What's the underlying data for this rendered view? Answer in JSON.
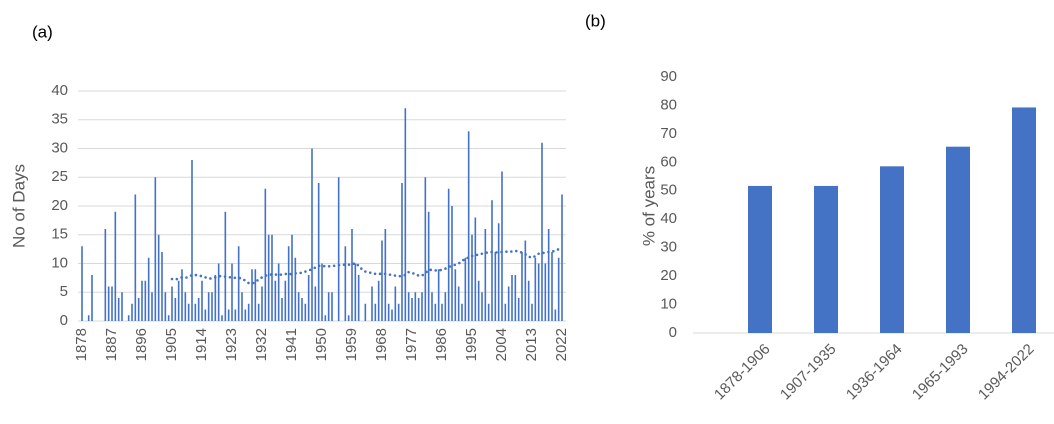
{
  "chart_data": [
    {
      "type": "bar",
      "panel_label": "(a)",
      "ylabel": "No of Days",
      "x": [
        1878,
        1879,
        1880,
        1881,
        1882,
        1883,
        1884,
        1885,
        1886,
        1887,
        1888,
        1889,
        1890,
        1891,
        1892,
        1893,
        1894,
        1895,
        1896,
        1897,
        1898,
        1899,
        1900,
        1901,
        1902,
        1903,
        1904,
        1905,
        1906,
        1907,
        1908,
        1909,
        1910,
        1911,
        1912,
        1913,
        1914,
        1915,
        1916,
        1917,
        1918,
        1919,
        1920,
        1921,
        1922,
        1923,
        1924,
        1925,
        1926,
        1927,
        1928,
        1929,
        1930,
        1931,
        1932,
        1933,
        1934,
        1935,
        1936,
        1937,
        1938,
        1939,
        1940,
        1941,
        1942,
        1943,
        1944,
        1945,
        1946,
        1947,
        1948,
        1949,
        1950,
        1951,
        1952,
        1953,
        1954,
        1955,
        1956,
        1957,
        1958,
        1959,
        1960,
        1961,
        1962,
        1963,
        1964,
        1965,
        1966,
        1967,
        1968,
        1969,
        1970,
        1971,
        1972,
        1973,
        1974,
        1975,
        1976,
        1977,
        1978,
        1979,
        1980,
        1981,
        1982,
        1983,
        1984,
        1985,
        1986,
        1987,
        1988,
        1989,
        1990,
        1991,
        1992,
        1993,
        1994,
        1995,
        1996,
        1997,
        1998,
        1999,
        2000,
        2001,
        2002,
        2003,
        2004,
        2005,
        2006,
        2007,
        2008,
        2009,
        2010,
        2011,
        2012,
        2013,
        2014,
        2015,
        2016,
        2017,
        2018,
        2019,
        2020,
        2021,
        2022
      ],
      "series": [
        {
          "type": "bar",
          "color": "#4472c4",
          "values": [
            13,
            0,
            1,
            8,
            0,
            0,
            0,
            16,
            6,
            6,
            19,
            4,
            5,
            0,
            1,
            3,
            22,
            4,
            7,
            7,
            11,
            5,
            25,
            15,
            12,
            5,
            1,
            6,
            4,
            7,
            9,
            5,
            3,
            28,
            3,
            4,
            7,
            2,
            5,
            5,
            8,
            10,
            1,
            19,
            2,
            10,
            2,
            13,
            5,
            2,
            3,
            9,
            9,
            3,
            6,
            23,
            15,
            15,
            7,
            10,
            4,
            7,
            13,
            15,
            11,
            5,
            4,
            3,
            8,
            30,
            6,
            24,
            10,
            1,
            5,
            5,
            0,
            25,
            0,
            13,
            1,
            16,
            10,
            8,
            0,
            3,
            0,
            6,
            3,
            7,
            14,
            16,
            3,
            2,
            6,
            3,
            24,
            37,
            5,
            4,
            5,
            4,
            5,
            25,
            19,
            5,
            3,
            9,
            3,
            5,
            23,
            20,
            9,
            6,
            3,
            11,
            33,
            15,
            18,
            7,
            5,
            16,
            3,
            21,
            12,
            17,
            26,
            3,
            6,
            8,
            8,
            4,
            12,
            14,
            7,
            3,
            11,
            10,
            31,
            10,
            16,
            12,
            2,
            11,
            22
          ]
        },
        {
          "type": "line",
          "style": "dotted",
          "color": "#4472c4",
          "values": [
            null,
            null,
            null,
            null,
            null,
            null,
            null,
            null,
            null,
            null,
            null,
            null,
            null,
            null,
            null,
            null,
            null,
            null,
            null,
            null,
            null,
            null,
            null,
            null,
            null,
            null,
            null,
            7.3,
            7.2,
            7.4,
            7.6,
            7.5,
            7.7,
            8.0,
            8.0,
            7.9,
            7.8,
            7.6,
            7.4,
            7.4,
            7.6,
            7.8,
            7.8,
            7.7,
            7.6,
            7.6,
            7.5,
            7.5,
            7.4,
            7.0,
            6.6,
            6.5,
            6.8,
            7.2,
            7.6,
            7.9,
            8.0,
            8.1,
            8.1,
            8.0,
            8.1,
            8.2,
            8.1,
            8.2,
            8.3,
            8.3,
            8.4,
            8.6,
            8.8,
            9.0,
            9.3,
            9.6,
            9.6,
            9.5,
            9.5,
            9.6,
            9.6,
            9.7,
            9.8,
            9.8,
            9.8,
            9.8,
            10.1,
            9.6,
            9.0,
            8.6,
            8.5,
            8.3,
            8.2,
            8.2,
            8.2,
            8.2,
            8.1,
            8.0,
            7.9,
            7.8,
            7.8,
            8.0,
            8.5,
            8.4,
            8.1,
            7.9,
            7.9,
            8.3,
            8.9,
            8.9,
            8.8,
            8.8,
            8.9,
            9.1,
            9.4,
            9.6,
            9.8,
            10.0,
            10.4,
            10.9,
            11.0,
            11.3,
            11.5,
            11.5,
            11.7,
            11.8,
            12.0,
            12.0,
            11.9,
            12.0,
            12.0,
            12.1,
            12.0,
            12.1,
            12.2,
            12.1,
            11.9,
            11.6,
            11.2,
            11.0,
            11.3,
            11.7,
            11.8,
            11.9,
            12.0,
            12.1,
            12.2,
            12.5,
            12.6
          ]
        }
      ],
      "xlim": [
        1878,
        2022
      ],
      "xticks": [
        1878,
        1887,
        1896,
        1905,
        1914,
        1923,
        1932,
        1941,
        1950,
        1959,
        1968,
        1977,
        1986,
        1995,
        2004,
        2013,
        2022
      ],
      "ylim": [
        0,
        40
      ],
      "yticks": [
        0,
        5,
        10,
        15,
        20,
        25,
        30,
        35,
        40
      ],
      "grid": true
    },
    {
      "type": "bar",
      "panel_label": "(b)",
      "ylabel": "% of years",
      "categories": [
        "1878-1906",
        "1907-1935",
        "1936-1964",
        "1965-1993",
        "1994-2022"
      ],
      "values": [
        51.7,
        51.7,
        58.6,
        65.5,
        79.3
      ],
      "color": "#4472c4",
      "ylim": [
        0,
        90
      ],
      "yticks": [
        0,
        10,
        20,
        30,
        40,
        50,
        60,
        70,
        80,
        90
      ],
      "grid": false
    }
  ]
}
